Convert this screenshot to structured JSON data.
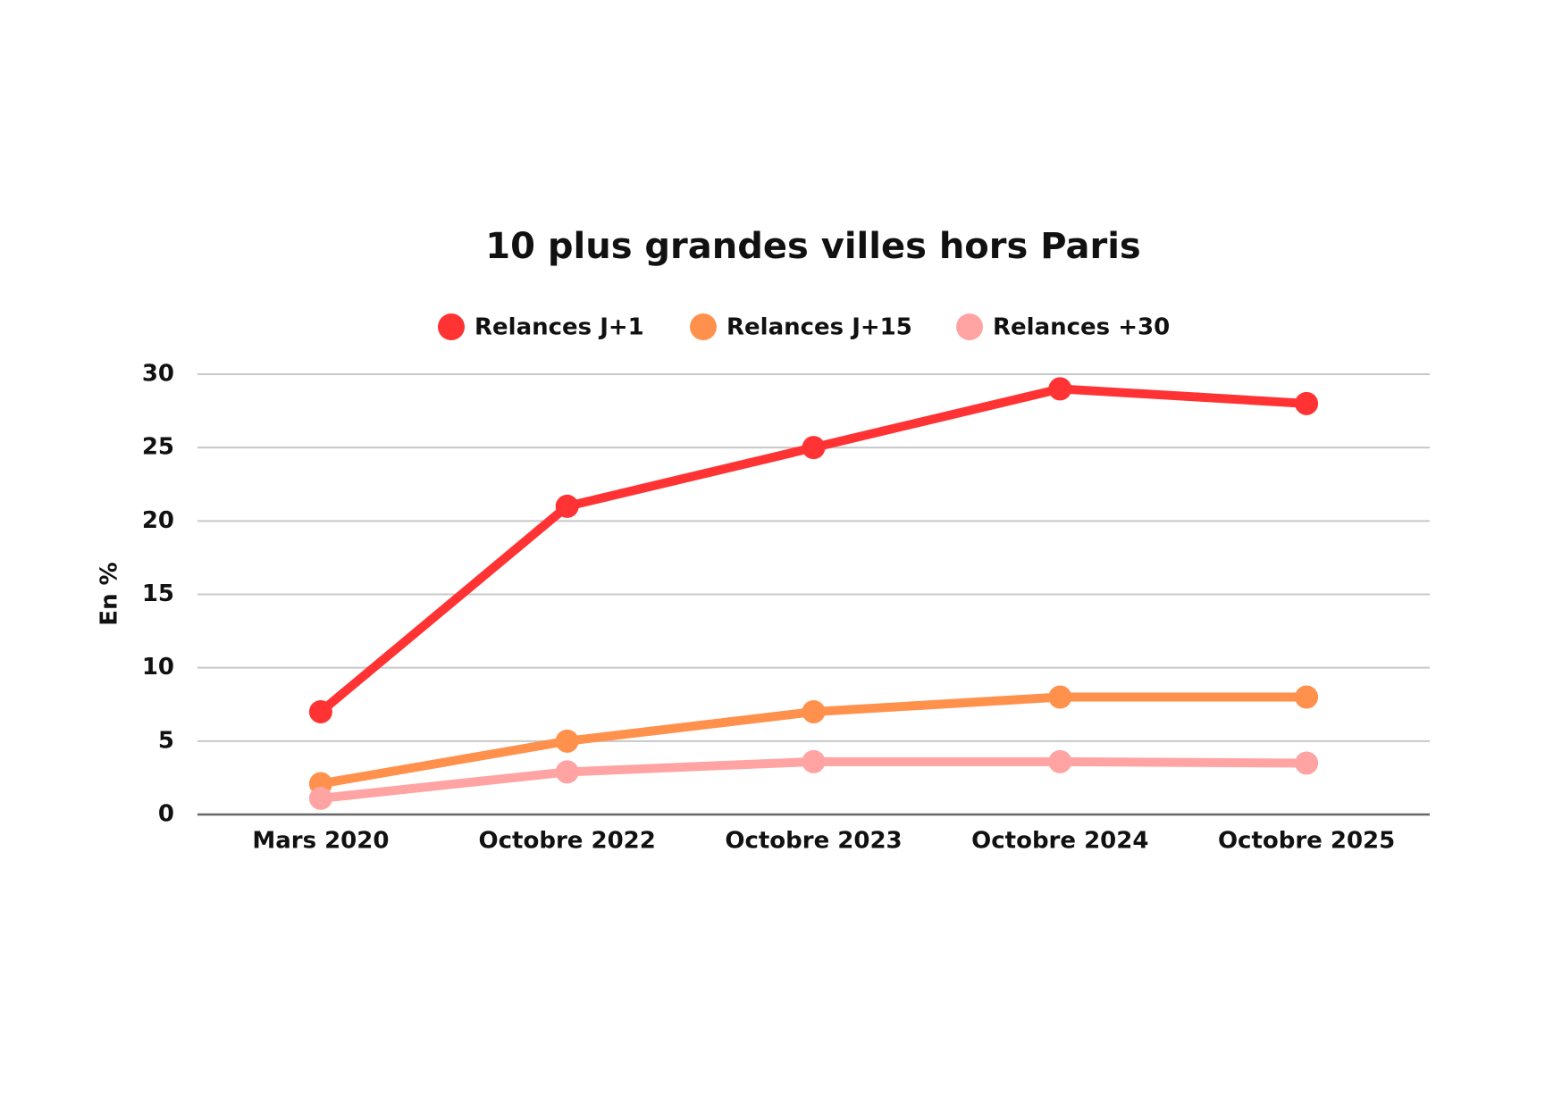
{
  "chart_data": {
    "type": "line",
    "title": "10 plus grandes villes hors Paris",
    "y_label": "En %",
    "categories": [
      "Mars 2020",
      "Octobre 2022",
      "Octobre 2023",
      "Octobre 2024",
      "Octobre 2025"
    ],
    "series": [
      {
        "name": "Relances J+1",
        "color": "#ff3333",
        "values": [
          7,
          21,
          25,
          29,
          28
        ]
      },
      {
        "name": "Relances J+15",
        "color": "#ff914d",
        "values": [
          2.1,
          5,
          7,
          8,
          8
        ]
      },
      {
        "name": "Relances +30",
        "color": "#ffa3a3",
        "values": [
          1.1,
          2.9,
          3.6,
          3.6,
          3.5
        ]
      }
    ],
    "ylim": [
      0,
      30
    ],
    "yticks": [
      0,
      5,
      10,
      15,
      20,
      25,
      30
    ],
    "grid": true,
    "legend": "top"
  }
}
